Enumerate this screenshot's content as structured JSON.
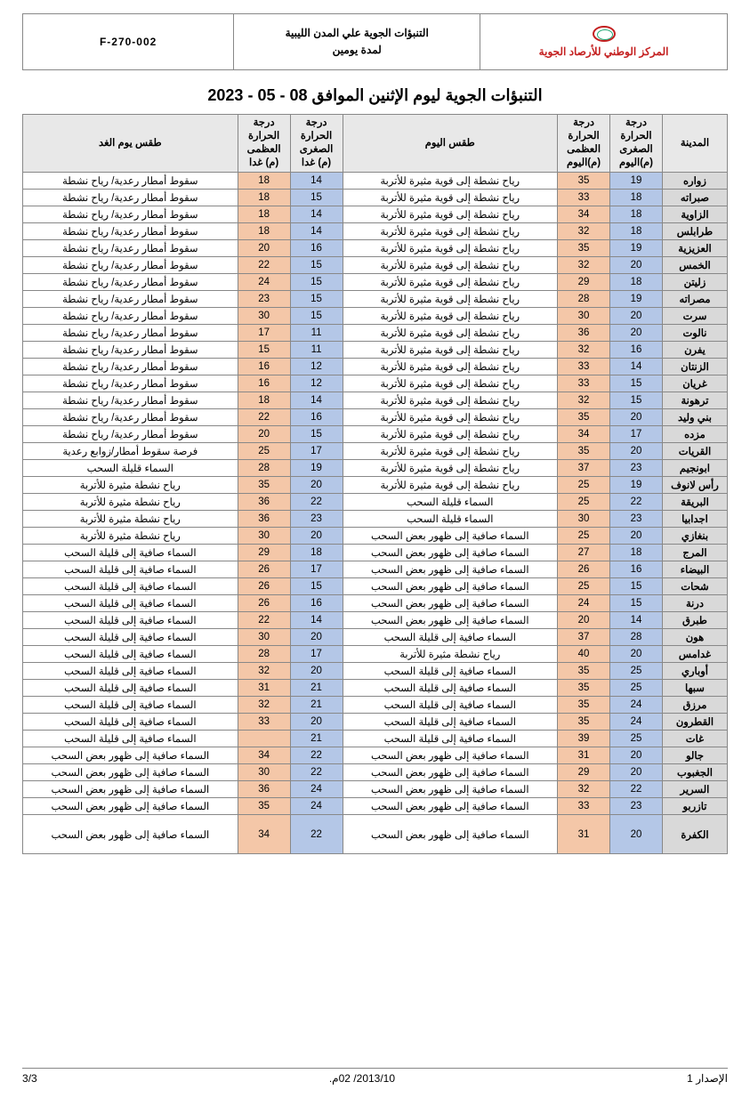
{
  "header": {
    "code": "F-270-002",
    "title_line1": "التنبؤات الجوية علي المدن الليبية",
    "title_line2": "لمدة يومين",
    "org": "المركز الوطني للأرصاد الجوية"
  },
  "main_title": "التنبؤات الجوية ليوم الإثنين الموافق 08 - 05 - 2023",
  "columns": {
    "city": "المدينة",
    "tmin_today": "درجة الحرارة الصغرى (م)اليوم",
    "tmax_today": "درجة الحرارة العظمى (م)اليوم",
    "cond_today": "طقس اليوم",
    "tmin_tom": "درجة الحرارة الصغرى (م) غدا",
    "tmax_tom": "درجة الحرارة العظمى (م) غدا",
    "cond_tom": "طقس يوم الغد"
  },
  "conditions": {
    "dust": "رياح نشطة إلى قوية مثيرة للأتربة",
    "thunder": "سقوط أمطار رعدية/ رياح نشطة",
    "chance": "فرصة سقوط أمطار/زوابع رعدية",
    "fewcloud": "السماء قليلة السحب",
    "duststorm": "رياح نشطة مثيرة للأتربة",
    "clearsome": "السماء صافية إلى ظهور بعض السحب",
    "clearfew": "السماء صافية إلى قليلة السحب"
  },
  "rows": [
    {
      "city": "زواره",
      "tn1": 19,
      "tx1": 35,
      "c1": "dust",
      "tn2": 14,
      "tx2": 18,
      "c2": "thunder"
    },
    {
      "city": "صبراته",
      "tn1": 18,
      "tx1": 33,
      "c1": "dust",
      "tn2": 15,
      "tx2": 18,
      "c2": "thunder"
    },
    {
      "city": "الزاوية",
      "tn1": 18,
      "tx1": 34,
      "c1": "dust",
      "tn2": 14,
      "tx2": 18,
      "c2": "thunder"
    },
    {
      "city": "طرابلس",
      "tn1": 18,
      "tx1": 32,
      "c1": "dust",
      "tn2": 14,
      "tx2": 18,
      "c2": "thunder"
    },
    {
      "city": "العزيزية",
      "tn1": 19,
      "tx1": 35,
      "c1": "dust",
      "tn2": 16,
      "tx2": 20,
      "c2": "thunder"
    },
    {
      "city": "الخمس",
      "tn1": 20,
      "tx1": 32,
      "c1": "dust",
      "tn2": 15,
      "tx2": 22,
      "c2": "thunder"
    },
    {
      "city": "زليتن",
      "tn1": 18,
      "tx1": 29,
      "c1": "dust",
      "tn2": 15,
      "tx2": 24,
      "c2": "thunder"
    },
    {
      "city": "مصراته",
      "tn1": 19,
      "tx1": 28,
      "c1": "dust",
      "tn2": 15,
      "tx2": 23,
      "c2": "thunder"
    },
    {
      "city": "سرت",
      "tn1": 20,
      "tx1": 30,
      "c1": "dust",
      "tn2": 15,
      "tx2": 30,
      "c2": "thunder"
    },
    {
      "city": "نالوت",
      "tn1": 20,
      "tx1": 36,
      "c1": "dust",
      "tn2": 11,
      "tx2": 17,
      "c2": "thunder"
    },
    {
      "city": "يفرن",
      "tn1": 16,
      "tx1": 32,
      "c1": "dust",
      "tn2": 11,
      "tx2": 15,
      "c2": "thunder"
    },
    {
      "city": "الزنتان",
      "tn1": 14,
      "tx1": 33,
      "c1": "dust",
      "tn2": 12,
      "tx2": 16,
      "c2": "thunder"
    },
    {
      "city": "غريان",
      "tn1": 15,
      "tx1": 33,
      "c1": "dust",
      "tn2": 12,
      "tx2": 16,
      "c2": "thunder"
    },
    {
      "city": "ترهونة",
      "tn1": 15,
      "tx1": 32,
      "c1": "dust",
      "tn2": 14,
      "tx2": 18,
      "c2": "thunder"
    },
    {
      "city": "بني وليد",
      "tn1": 20,
      "tx1": 35,
      "c1": "dust",
      "tn2": 16,
      "tx2": 22,
      "c2": "thunder"
    },
    {
      "city": "مزده",
      "tn1": 17,
      "tx1": 34,
      "c1": "dust",
      "tn2": 15,
      "tx2": 20,
      "c2": "thunder"
    },
    {
      "city": "القريات",
      "tn1": 20,
      "tx1": 35,
      "c1": "dust",
      "tn2": 17,
      "tx2": 25,
      "c2": "chance"
    },
    {
      "city": "ابونجيم",
      "tn1": 23,
      "tx1": 37,
      "c1": "dust",
      "tn2": 19,
      "tx2": 28,
      "c2": "fewcloud"
    },
    {
      "city": "رأس لانوف",
      "tn1": 19,
      "tx1": 25,
      "c1": "dust",
      "tn2": 20,
      "tx2": 35,
      "c2": "duststorm"
    },
    {
      "city": "البريقة",
      "tn1": 22,
      "tx1": 25,
      "c1": "fewcloud",
      "tn2": 22,
      "tx2": 36,
      "c2": "duststorm"
    },
    {
      "city": "اجدابيا",
      "tn1": 23,
      "tx1": 30,
      "c1": "fewcloud",
      "tn2": 23,
      "tx2": 36,
      "c2": "duststorm"
    },
    {
      "city": "بنغازي",
      "tn1": 20,
      "tx1": 25,
      "c1": "clearsome",
      "tn2": 20,
      "tx2": 30,
      "c2": "duststorm"
    },
    {
      "city": "المرج",
      "tn1": 18,
      "tx1": 27,
      "c1": "clearsome",
      "tn2": 18,
      "tx2": 29,
      "c2": "clearfew"
    },
    {
      "city": "البيضاء",
      "tn1": 16,
      "tx1": 26,
      "c1": "clearsome",
      "tn2": 17,
      "tx2": 26,
      "c2": "clearfew"
    },
    {
      "city": "شحات",
      "tn1": 15,
      "tx1": 25,
      "c1": "clearsome",
      "tn2": 15,
      "tx2": 26,
      "c2": "clearfew"
    },
    {
      "city": "درنة",
      "tn1": 15,
      "tx1": 24,
      "c1": "clearsome",
      "tn2": 16,
      "tx2": 26,
      "c2": "clearfew"
    },
    {
      "city": "طبرق",
      "tn1": 14,
      "tx1": 20,
      "c1": "clearsome",
      "tn2": 14,
      "tx2": 22,
      "c2": "clearfew"
    },
    {
      "city": "هون",
      "tn1": 28,
      "tx1": 37,
      "c1": "clearfew",
      "tn2": 20,
      "tx2": 30,
      "c2": "clearfew"
    },
    {
      "city": "غدامس",
      "tn1": 20,
      "tx1": 40,
      "c1": "duststorm",
      "tn2": 17,
      "tx2": 28,
      "c2": "clearfew"
    },
    {
      "city": "أوباري",
      "tn1": 25,
      "tx1": 35,
      "c1": "clearfew",
      "tn2": 20,
      "tx2": 32,
      "c2": "clearfew"
    },
    {
      "city": "سبها",
      "tn1": 25,
      "tx1": 35,
      "c1": "clearfew",
      "tn2": 21,
      "tx2": 31,
      "c2": "clearfew"
    },
    {
      "city": "مرزق",
      "tn1": 24,
      "tx1": 35,
      "c1": "clearfew",
      "tn2": 21,
      "tx2": 32,
      "c2": "clearfew"
    },
    {
      "city": "القطرون",
      "tn1": 24,
      "tx1": 35,
      "c1": "clearfew",
      "tn2": 20,
      "tx2": 33,
      "c2": "clearfew"
    },
    {
      "city": "غات",
      "tn1": 25,
      "tx1": 39,
      "c1": "clearfew",
      "tn2": 21,
      "tx2": "",
      "c2": "clearfew"
    },
    {
      "city": "جالو",
      "tn1": 20,
      "tx1": 31,
      "c1": "clearsome",
      "tn2": 22,
      "tx2": 34,
      "c2": "clearsome"
    },
    {
      "city": "الجغبوب",
      "tn1": 20,
      "tx1": 29,
      "c1": "clearsome",
      "tn2": 22,
      "tx2": 30,
      "c2": "clearsome"
    },
    {
      "city": "السرير",
      "tn1": 22,
      "tx1": 32,
      "c1": "clearsome",
      "tn2": 24,
      "tx2": 36,
      "c2": "clearsome"
    },
    {
      "city": "تازربو",
      "tn1": 23,
      "tx1": 33,
      "c1": "clearsome",
      "tn2": 24,
      "tx2": 35,
      "c2": "clearsome"
    },
    {
      "city": "الكفرة",
      "tn1": 20,
      "tx1": 31,
      "c1": "clearsome",
      "tn2": 22,
      "tx2": 34,
      "c2": "clearsome"
    }
  ],
  "footer": {
    "issue": "الإصدار 1",
    "date": "2013/10/ 02م.",
    "page": "3/3"
  },
  "colors": {
    "tmin_bg": "#b4c7e7",
    "tmax_bg": "#f4c7a8",
    "city_bg": "#d9d9d9",
    "header_bg": "#e8e8e8",
    "border": "#888888",
    "org_text": "#c42020"
  }
}
